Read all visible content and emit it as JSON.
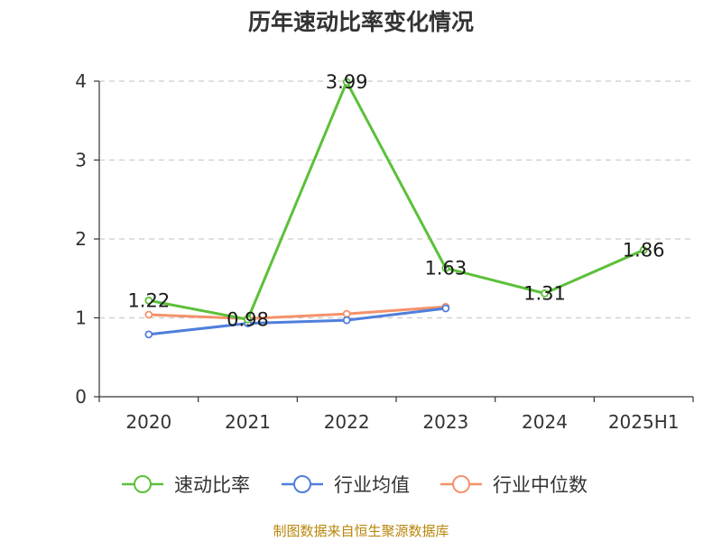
{
  "chart_data": {
    "type": "line",
    "title": "历年速动比率变化情况",
    "xlabel": "",
    "ylabel": "",
    "categories": [
      "2020",
      "2021",
      "2022",
      "2023",
      "2024",
      "2025H1"
    ],
    "ylim": [
      0,
      4
    ],
    "yticks": [
      0,
      1,
      2,
      3,
      4
    ],
    "grid": true,
    "legend_position": "bottom",
    "series": [
      {
        "name": "速动比率",
        "color": "#5cc03a",
        "values": [
          1.22,
          0.98,
          3.99,
          1.63,
          1.31,
          1.86
        ],
        "labels": [
          "1.22",
          "0.98",
          "3.99",
          "1.63",
          "1.31",
          "1.86"
        ]
      },
      {
        "name": "行业均值",
        "color": "#4f7fdc",
        "values": [
          0.79,
          0.93,
          0.97,
          1.12,
          null,
          null
        ]
      },
      {
        "name": "行业中位数",
        "color": "#f4926a",
        "values": [
          1.04,
          0.99,
          1.05,
          1.14,
          null,
          null
        ]
      }
    ]
  },
  "footer": {
    "source": "制图数据来自恒生聚源数据库"
  }
}
